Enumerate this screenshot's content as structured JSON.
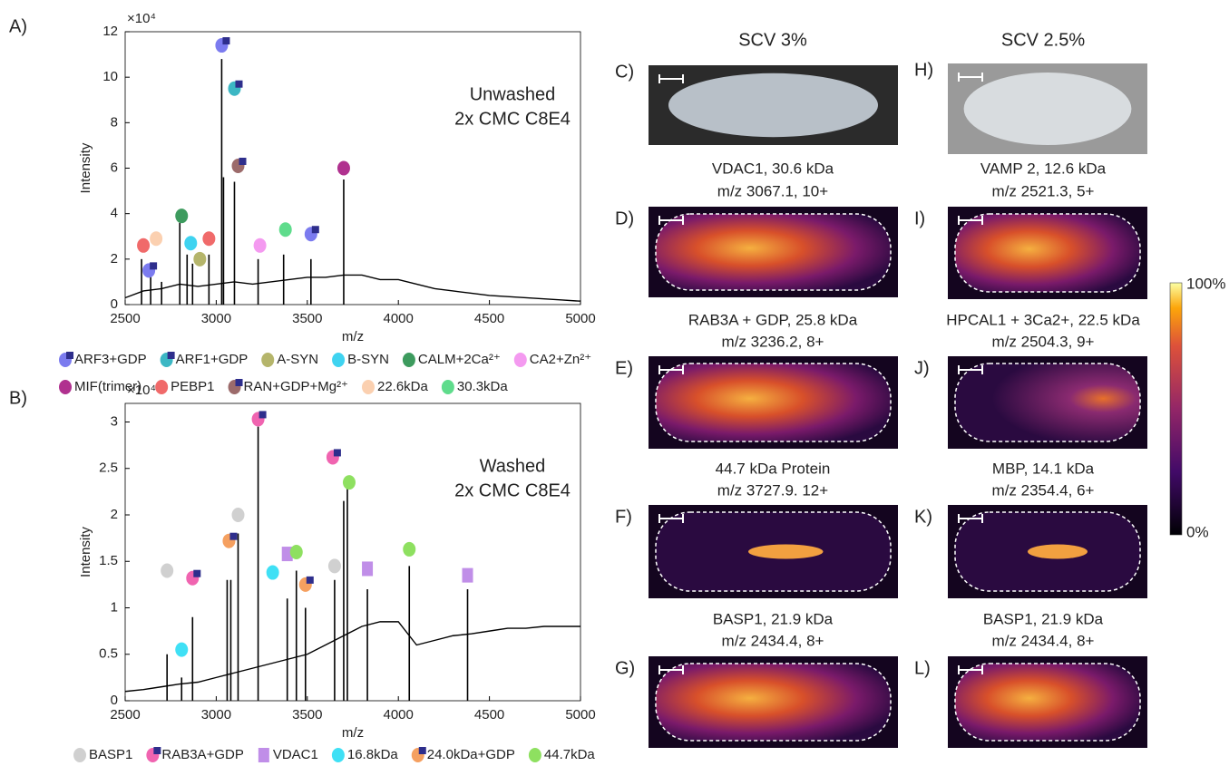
{
  "chart_data": [
    {
      "type": "line",
      "panel_label": "A)",
      "annotation": [
        "Unwashed",
        "2x CMC C8E4"
      ],
      "xlabel": "m/z",
      "ylabel": "Intensity",
      "y_multiplier": "×10⁴",
      "color": "#000000",
      "xlim": [
        2500,
        5000
      ],
      "xticks": [
        2500,
        3000,
        3500,
        4000,
        4500,
        5000
      ],
      "ylim": [
        0,
        12
      ],
      "yticks": [
        0,
        2,
        4,
        6,
        8,
        10,
        12
      ],
      "x": [
        2500,
        2600,
        2700,
        2800,
        2900,
        3000,
        3100,
        3200,
        3300,
        3400,
        3500,
        3600,
        3700,
        3800,
        3900,
        4000,
        4100,
        4200,
        4300,
        4400,
        4500,
        4600,
        4700,
        4800,
        4900,
        5000
      ],
      "values": [
        0.3,
        0.6,
        0.7,
        0.9,
        0.8,
        0.9,
        1.0,
        0.9,
        1.0,
        1.1,
        1.2,
        1.2,
        1.3,
        1.3,
        1.1,
        1.1,
        0.9,
        0.7,
        0.6,
        0.5,
        0.4,
        0.35,
        0.3,
        0.25,
        0.2,
        0.15
      ],
      "peaks": {
        "x": [
          2590,
          2640,
          2700,
          2800,
          2840,
          2870,
          2960,
          3030,
          3040,
          3100,
          3230,
          3370,
          3520,
          3700
        ],
        "values": [
          2.0,
          1.3,
          1.0,
          3.6,
          2.2,
          1.8,
          2.2,
          10.8,
          5.6,
          5.4,
          2.0,
          2.2,
          2.0,
          5.5
        ]
      },
      "series": [
        {
          "name": "ARF3+GDP",
          "color": "#7b7bef",
          "marker": "circle-square",
          "x": [
            3030,
            2630,
            3520
          ],
          "values": [
            11.4,
            1.5,
            3.1
          ]
        },
        {
          "name": "ARF1+GDP",
          "color": "#3cb7c4",
          "marker": "circle-square",
          "x": [
            3100
          ],
          "values": [
            9.5
          ]
        },
        {
          "name": "A-SYN",
          "color": "#b5b56b",
          "marker": "circle",
          "x": [
            2910
          ],
          "values": [
            2.0
          ]
        },
        {
          "name": "B-SYN",
          "color": "#3fd3f0",
          "marker": "circle",
          "x": [
            2860
          ],
          "values": [
            2.7
          ]
        },
        {
          "name": "CALM+2Ca²⁺",
          "color": "#3d9b5e",
          "marker": "circle",
          "x": [
            2810
          ],
          "values": [
            3.9
          ]
        },
        {
          "name": "CA2+Zn²⁺",
          "color": "#f49af0",
          "marker": "circle",
          "x": [
            3240
          ],
          "values": [
            2.6
          ]
        },
        {
          "name": "MIF(trimer)",
          "color": "#b0318f",
          "marker": "circle",
          "x": [
            3700
          ],
          "values": [
            6.0
          ]
        },
        {
          "name": "PEBP1",
          "color": "#f06a6a",
          "marker": "circle",
          "x": [
            2600,
            2960
          ],
          "values": [
            2.6,
            2.9
          ]
        },
        {
          "name": "RAN+GDP+Mg²⁺",
          "color": "#9c6b6b",
          "marker": "circle-square",
          "x": [
            3120
          ],
          "values": [
            6.1
          ]
        },
        {
          "name": "22.6kDa",
          "color": "#fbd0b0",
          "marker": "circle",
          "x": [
            2670
          ],
          "values": [
            2.9
          ]
        },
        {
          "name": "30.3kDa",
          "color": "#5fdc8c",
          "marker": "circle",
          "x": [
            3380
          ],
          "values": [
            3.3
          ]
        }
      ]
    },
    {
      "type": "line",
      "panel_label": "B)",
      "annotation": [
        "Washed",
        "2x CMC C8E4"
      ],
      "xlabel": "m/z",
      "ylabel": "Intensity",
      "y_multiplier": "×10⁴",
      "color": "#000000",
      "xlim": [
        2500,
        5000
      ],
      "xticks": [
        2500,
        3000,
        3500,
        4000,
        4500,
        5000
      ],
      "ylim": [
        0,
        3.2
      ],
      "yticks": [
        0,
        0.5,
        1,
        1.5,
        2,
        2.5,
        3
      ],
      "x": [
        2500,
        2600,
        2700,
        2800,
        2900,
        3000,
        3100,
        3200,
        3300,
        3400,
        3500,
        3600,
        3700,
        3800,
        3900,
        4000,
        4100,
        4200,
        4300,
        4400,
        4500,
        4600,
        4700,
        4800,
        4900,
        5000
      ],
      "values": [
        0.1,
        0.12,
        0.15,
        0.18,
        0.2,
        0.25,
        0.3,
        0.35,
        0.4,
        0.45,
        0.5,
        0.6,
        0.7,
        0.8,
        0.85,
        0.85,
        0.6,
        0.65,
        0.7,
        0.72,
        0.75,
        0.78,
        0.78,
        0.8,
        0.8,
        0.8
      ],
      "peaks": {
        "x": [
          2730,
          2810,
          2870,
          3060,
          3080,
          3120,
          3230,
          3390,
          3440,
          3490,
          3650,
          3700,
          3720,
          3830,
          4060,
          4380
        ],
        "values": [
          0.5,
          0.25,
          0.9,
          1.3,
          1.3,
          1.8,
          2.95,
          1.1,
          1.4,
          1.0,
          1.3,
          2.15,
          2.3,
          1.2,
          1.45,
          1.2
        ]
      },
      "series": [
        {
          "name": "BASP1",
          "color": "#d0d0d0",
          "marker": "circle",
          "x": [
            2730,
            3120,
            3650
          ],
          "values": [
            1.4,
            2.0,
            1.45
          ]
        },
        {
          "name": "RAB3A+GDP",
          "color": "#f064b0",
          "marker": "circle-square",
          "x": [
            2870,
            3230,
            3640
          ],
          "values": [
            1.32,
            3.03,
            2.62
          ]
        },
        {
          "name": "VDAC1",
          "color": "#c08ee8",
          "marker": "square",
          "x": [
            3390,
            3830,
            4380
          ],
          "values": [
            1.58,
            1.42,
            1.35
          ]
        },
        {
          "name": "16.8kDa",
          "color": "#3fe0f5",
          "marker": "circle",
          "x": [
            2810,
            3310
          ],
          "values": [
            0.55,
            1.38
          ]
        },
        {
          "name": "24.0kDa+GDP",
          "color": "#f5a060",
          "marker": "circle-square",
          "x": [
            3070,
            3490
          ],
          "values": [
            1.72,
            1.25
          ]
        },
        {
          "name": "44.7kDa",
          "color": "#8ee060",
          "marker": "circle",
          "x": [
            3440,
            3730,
            4060
          ],
          "values": [
            1.6,
            2.35,
            1.63
          ]
        }
      ]
    }
  ],
  "panels": [
    {
      "letter": "C)",
      "title": [
        "SCV 3%"
      ]
    },
    {
      "letter": "D)",
      "title": [
        "VDAC1, 30.6 kDa",
        "m/z 3067.1, 10+"
      ]
    },
    {
      "letter": "E)",
      "title": [
        "RAB3A + GDP, 25.8 kDa",
        "m/z 3236.2, 8+"
      ]
    },
    {
      "letter": "F)",
      "title": [
        "44.7 kDa Protein",
        "m/z 3727.9. 12+"
      ]
    },
    {
      "letter": "G)",
      "title": [
        "BASP1, 21.9 kDa",
        "m/z 2434.4, 8+"
      ]
    },
    {
      "letter": "H)",
      "title": [
        "SCV 2.5%"
      ]
    },
    {
      "letter": "I)",
      "title": [
        "VAMP 2, 12.6 kDa",
        "m/z 2521.3, 5+"
      ]
    },
    {
      "letter": "J)",
      "title": [
        "HPCAL1 + 3Ca2+, 22.5 kDa",
        "m/z 2504.3, 9+"
      ]
    },
    {
      "letter": "K)",
      "title": [
        "MBP, 14.1 kDa",
        "m/z 2354.4, 6+"
      ]
    },
    {
      "letter": "L)",
      "title": [
        "BASP1, 21.9 kDa",
        "m/z 2434.4, 8+"
      ]
    }
  ],
  "colorbar": {
    "top": "100%",
    "bottom": "0%"
  }
}
